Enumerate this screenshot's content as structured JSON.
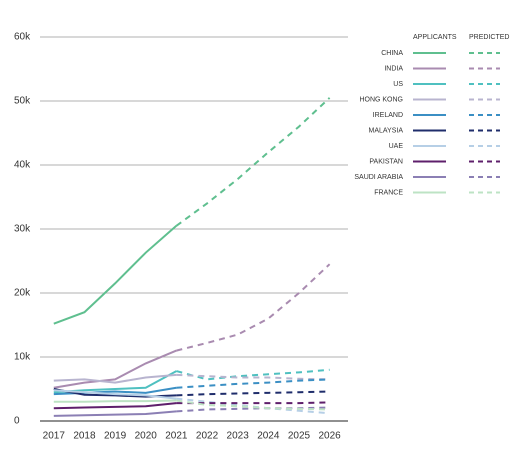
{
  "chart_data": {
    "type": "line",
    "legend_headers": [
      "APPLICANTS",
      "PREDICTED"
    ],
    "x": [
      2017,
      2018,
      2019,
      2020,
      2021,
      2022,
      2023,
      2024,
      2025,
      2026
    ],
    "xticks": [
      2017,
      2018,
      2019,
      2020,
      2021,
      2022,
      2023,
      2024,
      2025,
      2026
    ],
    "xlim": [
      2016.55,
      2026.6
    ],
    "ylim": [
      0,
      60000
    ],
    "yticks": [
      0,
      {
        "value": 10000,
        "label": "10k"
      },
      {
        "value": 20000,
        "label": "20k"
      },
      {
        "value": 30000,
        "label": "30k"
      },
      {
        "value": 40000,
        "label": "40k"
      },
      {
        "value": 50000,
        "label": "50k"
      },
      {
        "value": 60000,
        "label": "60k"
      }
    ],
    "grid": true,
    "legend": "right",
    "series": [
      {
        "name": "CHINA",
        "color": "#5fbf8f",
        "values": [
          15200,
          17000,
          21500,
          26300,
          30500,
          null,
          null,
          null,
          null,
          null
        ],
        "predicted": [
          null,
          null,
          null,
          null,
          30500,
          34000,
          37800,
          42000,
          46000,
          50500
        ]
      },
      {
        "name": "INDIA",
        "color": "#a98bb0",
        "values": [
          5200,
          6000,
          6500,
          9000,
          11000,
          null,
          null,
          null,
          null,
          null
        ],
        "predicted": [
          null,
          null,
          null,
          null,
          11000,
          12200,
          13500,
          16000,
          20000,
          24500
        ]
      },
      {
        "name": "US",
        "color": "#4fc0c0",
        "values": [
          4500,
          4800,
          5000,
          5200,
          7800,
          null,
          null,
          null,
          null,
          null
        ],
        "predicted": [
          null,
          null,
          null,
          null,
          7800,
          6500,
          7000,
          7300,
          7600,
          8000
        ]
      },
      {
        "name": "HONG KONG",
        "color": "#b8b4cf",
        "values": [
          6300,
          6500,
          6000,
          6800,
          7200,
          null,
          null,
          null,
          null,
          null
        ],
        "predicted": [
          null,
          null,
          null,
          null,
          7200,
          7000,
          6800,
          6800,
          6600,
          6500
        ]
      },
      {
        "name": "IRELAND",
        "color": "#3b8fc4",
        "values": [
          4200,
          4400,
          4600,
          4400,
          5200,
          null,
          null,
          null,
          null,
          null
        ],
        "predicted": [
          null,
          null,
          null,
          null,
          5200,
          5500,
          5800,
          6000,
          6300,
          6500
        ]
      },
      {
        "name": "MALAYSIA",
        "color": "#1f2d6b",
        "values": [
          5000,
          4100,
          4000,
          3800,
          4000,
          null,
          null,
          null,
          null,
          null
        ],
        "predicted": [
          null,
          null,
          null,
          null,
          4000,
          4200,
          4300,
          4400,
          4500,
          4600
        ]
      },
      {
        "name": "UAE",
        "color": "#b6cfe6",
        "values": [
          4800,
          4500,
          4200,
          4000,
          3500,
          null,
          null,
          null,
          null,
          null
        ],
        "predicted": [
          null,
          null,
          null,
          null,
          3500,
          3000,
          2500,
          2000,
          1600,
          1200
        ]
      },
      {
        "name": "PAKISTAN",
        "color": "#5e1f6b",
        "values": [
          2000,
          2100,
          2200,
          2300,
          2800,
          null,
          null,
          null,
          null,
          null
        ],
        "predicted": [
          null,
          null,
          null,
          null,
          2800,
          2800,
          2800,
          2800,
          2800,
          2900
        ]
      },
      {
        "name": "SAUDI ARABIA",
        "color": "#8b7fb4",
        "values": [
          800,
          900,
          1000,
          1100,
          1500,
          null,
          null,
          null,
          null,
          null
        ],
        "predicted": [
          null,
          null,
          null,
          null,
          1500,
          1800,
          1900,
          2000,
          2000,
          2100
        ]
      },
      {
        "name": "FRANCE",
        "color": "#bde3c4",
        "values": [
          3000,
          3000,
          3100,
          3100,
          3200,
          null,
          null,
          null,
          null,
          null
        ],
        "predicted": [
          null,
          null,
          null,
          null,
          3200,
          2500,
          2300,
          2000,
          1900,
          1800
        ]
      }
    ]
  }
}
